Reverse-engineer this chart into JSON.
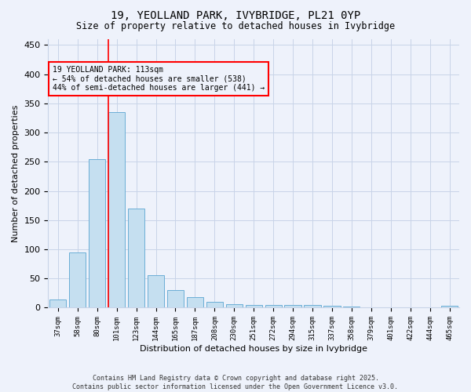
{
  "title": "19, YEOLLAND PARK, IVYBRIDGE, PL21 0YP",
  "subtitle": "Size of property relative to detached houses in Ivybridge",
  "xlabel": "Distribution of detached houses by size in Ivybridge",
  "ylabel": "Number of detached properties",
  "footer": "Contains HM Land Registry data © Crown copyright and database right 2025.\nContains public sector information licensed under the Open Government Licence v3.0.",
  "categories": [
    "37sqm",
    "58sqm",
    "80sqm",
    "101sqm",
    "123sqm",
    "144sqm",
    "165sqm",
    "187sqm",
    "208sqm",
    "230sqm",
    "251sqm",
    "272sqm",
    "294sqm",
    "315sqm",
    "337sqm",
    "358sqm",
    "379sqm",
    "401sqm",
    "422sqm",
    "444sqm",
    "465sqm"
  ],
  "values": [
    14,
    94,
    255,
    335,
    170,
    56,
    30,
    18,
    10,
    6,
    5,
    4,
    5,
    5,
    3,
    2,
    1,
    1,
    0,
    1,
    3
  ],
  "bar_color": "#c5dff0",
  "bar_edge_color": "#6baed6",
  "bg_color": "#eef2fb",
  "grid_color": "#c8d4e8",
  "vline_x": 3,
  "vline_color": "red",
  "annotation_text": "19 YEOLLAND PARK: 113sqm\n← 54% of detached houses are smaller (538)\n44% of semi-detached houses are larger (441) →",
  "annotation_box_color": "red",
  "ylim": [
    0,
    460
  ],
  "yticks": [
    0,
    50,
    100,
    150,
    200,
    250,
    300,
    350,
    400,
    450
  ]
}
